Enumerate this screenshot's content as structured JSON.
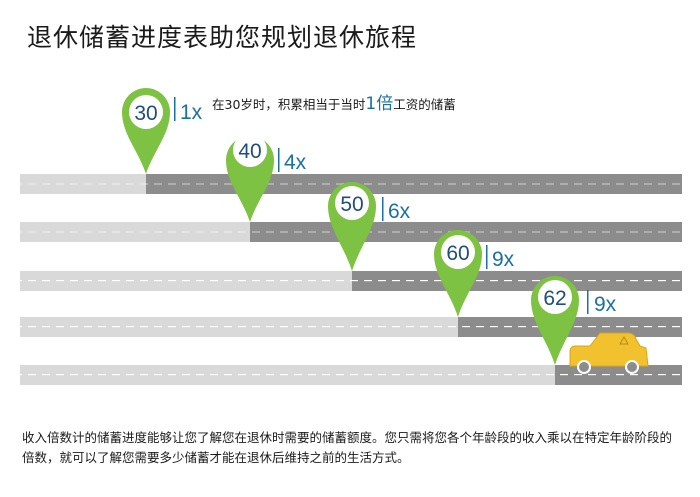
{
  "title": "退休储蓄进度表助您规划退休旅程",
  "first_note": {
    "before": "在30岁时，积累相当于当时",
    "highlight": "1倍",
    "after": "工资的储蓄"
  },
  "milestones": [
    {
      "age": "30",
      "multiple": "1x"
    },
    {
      "age": "40",
      "multiple": "4x"
    },
    {
      "age": "50",
      "multiple": "6x"
    },
    {
      "age": "60",
      "multiple": "9x"
    },
    {
      "age": "62",
      "multiple": "9x"
    }
  ],
  "caption": "收入倍数计的储蓄进度能够让您了解您在退休时需要的储蓄额度。您只需将您各个年龄段的收入乘以在特定年龄阶段的倍数，就可以了解您需要多少储蓄才能在退休后维持之前的生活方式。",
  "colors": {
    "pin_green": "#7dc242",
    "pin_center": "#ffffff",
    "age_text": "#1f4e79",
    "multiple_text": "#1a6fa3",
    "road_light": "#d9d9d9",
    "road_dark": "#8c8c8c",
    "car_body": "#f2c12e"
  },
  "icons": {
    "car": "car-icon",
    "pin": "map-pin-icon"
  }
}
